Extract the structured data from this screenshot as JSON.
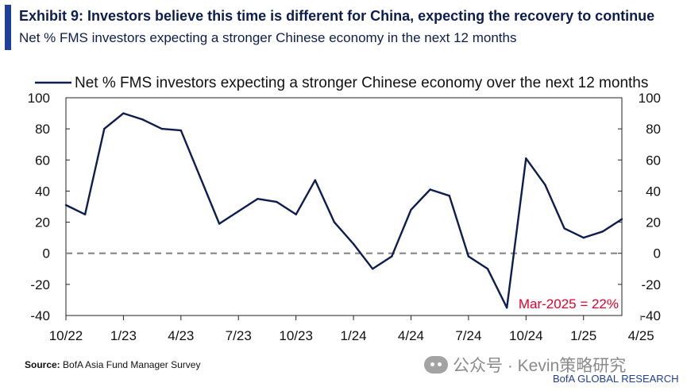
{
  "header": {
    "title": "Exhibit 9: Investors believe this time is different for China, expecting the recovery to continue",
    "subtitle": "Net % FMS investors expecting a stronger Chinese economy in the next 12 months"
  },
  "chart_data": {
    "type": "line",
    "title": "Exhibit 9: Investors believe this time is different for China, expecting the recovery to continue",
    "subtitle": "Net % FMS investors expecting a stronger Chinese economy in the next 12 months",
    "xlabel": "",
    "ylabel": "",
    "ylim": [
      -40,
      100
    ],
    "yticks": [
      100,
      80,
      60,
      40,
      20,
      0,
      -20,
      -40
    ],
    "ytick_labels": [
      "100",
      "80",
      "60",
      "40",
      "20",
      "0",
      "-20",
      "-40"
    ],
    "xtick_labels": [
      "10/22",
      "1/23",
      "4/23",
      "7/23",
      "10/23",
      "1/24",
      "4/24",
      "7/24",
      "10/24",
      "1/25",
      "4/25"
    ],
    "x": [
      "Oct-22",
      "Nov-22",
      "Dec-22",
      "Jan-23",
      "Feb-23",
      "Mar-23",
      "Apr-23",
      "May-23",
      "Jun-23",
      "Jul-23",
      "Aug-23",
      "Sep-23",
      "Oct-23",
      "Nov-23",
      "Dec-23",
      "Jan-24",
      "Feb-24",
      "Mar-24",
      "Apr-24",
      "May-24",
      "Jun-24",
      "Jul-24",
      "Aug-24",
      "Sep-24",
      "Oct-24",
      "Nov-24",
      "Dec-24",
      "Jan-25",
      "Feb-25",
      "Mar-25"
    ],
    "series": [
      {
        "name": "Net % FMS investors expecting a stronger Chinese economy over the next 12 months",
        "color": "#0d1d4f",
        "values": [
          31,
          25,
          80,
          90,
          86,
          80,
          79,
          49,
          19,
          27,
          35,
          33,
          25,
          47,
          20,
          6,
          -10,
          -2,
          28,
          41,
          37,
          -2,
          -10,
          -35,
          61,
          44,
          16,
          10,
          14,
          22
        ]
      }
    ],
    "reference_line": {
      "y": 0,
      "style": "dashed",
      "color": "#8c8c8c"
    },
    "legend": {
      "position": "top",
      "label": "Net % FMS investors expecting a stronger Chinese economy over the next 12 months"
    },
    "annotations": [
      {
        "text": "Mar-2025 = 22%",
        "color": "#e4002b",
        "position": "bottom-right"
      }
    ],
    "grid": false,
    "secondary_y_axis": true
  },
  "footer": {
    "source_label": "Source:",
    "source_text": "BofA Asia Fund Manager Survey",
    "watermark": "公众号 · Kevin策略研究",
    "brand": "BofA GLOBAL RESEARCH"
  }
}
